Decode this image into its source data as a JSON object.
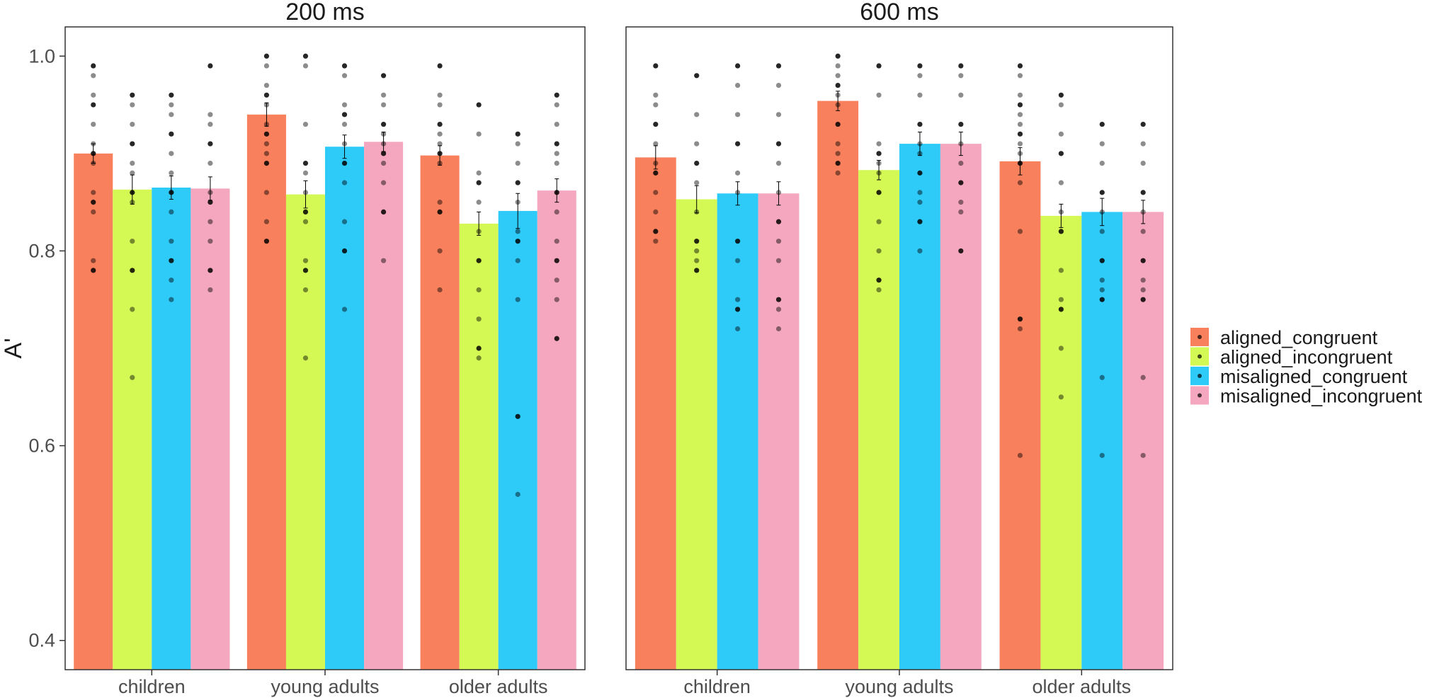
{
  "chart_data": {
    "type": "bar",
    "ylabel": "A'",
    "ylim": [
      0.37,
      1.03
    ],
    "yticks": [
      0.4,
      0.6,
      0.8,
      1.0
    ],
    "ytick_labels": [
      "0.4",
      "0.6",
      "0.8",
      "1.0"
    ],
    "categories": [
      "children",
      "young adults",
      "older adults"
    ],
    "legend_position": "right",
    "colors": {
      "aligned_congruent": "#F8805C",
      "aligned_incongruent": "#D4F955",
      "misaligned_congruent": "#2ECBF9",
      "misaligned_incongruent": "#F4A7BE",
      "points": "#000000",
      "panel_border": "#333333"
    },
    "legend": [
      {
        "key": "aligned_congruent",
        "label": "aligned_congruent"
      },
      {
        "key": "aligned_incongruent",
        "label": "aligned_incongruent"
      },
      {
        "key": "misaligned_congruent",
        "label": "misaligned_congruent"
      },
      {
        "key": "misaligned_incongruent",
        "label": "misaligned_incongruent"
      }
    ],
    "panels": [
      {
        "title": "200 ms",
        "series": [
          {
            "name": "aligned_congruent",
            "values": [
              0.9,
              0.94,
              0.898
            ],
            "se": [
              0.01,
              0.012,
              0.01
            ],
            "points": [
              [
                0.99,
                0.98,
                0.96,
                0.95,
                0.93,
                0.91,
                0.9,
                0.89,
                0.86,
                0.85,
                0.84,
                0.79,
                0.78
              ],
              [
                1.0,
                0.99,
                0.97,
                0.96,
                0.95,
                0.93,
                0.92,
                0.91,
                0.9,
                0.89,
                0.86,
                0.83,
                0.81
              ],
              [
                0.99,
                0.96,
                0.95,
                0.93,
                0.92,
                0.91,
                0.9,
                0.89,
                0.85,
                0.84,
                0.8,
                0.76
              ]
            ]
          },
          {
            "name": "aligned_incongruent",
            "values": [
              0.863,
              0.858,
              0.828
            ],
            "se": [
              0.015,
              0.014,
              0.012
            ],
            "points": [
              [
                0.96,
                0.95,
                0.93,
                0.91,
                0.89,
                0.88,
                0.86,
                0.85,
                0.81,
                0.78,
                0.74,
                0.67
              ],
              [
                1.0,
                0.99,
                0.93,
                0.89,
                0.88,
                0.86,
                0.84,
                0.83,
                0.79,
                0.78,
                0.76,
                0.69
              ],
              [
                0.95,
                0.92,
                0.88,
                0.87,
                0.85,
                0.82,
                0.79,
                0.76,
                0.73,
                0.7,
                0.69
              ]
            ]
          },
          {
            "name": "misaligned_congruent",
            "values": [
              0.865,
              0.907,
              0.841
            ],
            "se": [
              0.012,
              0.012,
              0.018
            ],
            "points": [
              [
                0.96,
                0.95,
                0.94,
                0.92,
                0.9,
                0.88,
                0.86,
                0.84,
                0.81,
                0.79,
                0.77,
                0.75
              ],
              [
                0.99,
                0.98,
                0.95,
                0.94,
                0.93,
                0.91,
                0.89,
                0.87,
                0.83,
                0.8,
                0.74
              ],
              [
                0.92,
                0.91,
                0.89,
                0.87,
                0.85,
                0.82,
                0.81,
                0.79,
                0.75,
                0.63,
                0.55
              ]
            ]
          },
          {
            "name": "misaligned_incongruent",
            "values": [
              0.864,
              0.912,
              0.862
            ],
            "se": [
              0.012,
              0.01,
              0.012
            ],
            "points": [
              [
                0.99,
                0.94,
                0.93,
                0.91,
                0.89,
                0.86,
                0.85,
                0.83,
                0.81,
                0.78,
                0.76
              ],
              [
                0.98,
                0.96,
                0.95,
                0.93,
                0.92,
                0.91,
                0.9,
                0.89,
                0.87,
                0.84,
                0.79
              ],
              [
                0.96,
                0.95,
                0.93,
                0.91,
                0.9,
                0.89,
                0.86,
                0.84,
                0.81,
                0.79,
                0.77,
                0.75,
                0.71
              ]
            ]
          }
        ]
      },
      {
        "title": "600 ms",
        "series": [
          {
            "name": "aligned_congruent",
            "values": [
              0.896,
              0.954,
              0.892
            ],
            "se": [
              0.012,
              0.01,
              0.014
            ],
            "points": [
              [
                0.99,
                0.96,
                0.95,
                0.93,
                0.91,
                0.89,
                0.88,
                0.86,
                0.84,
                0.82,
                0.81
              ],
              [
                1.0,
                0.99,
                0.98,
                0.97,
                0.96,
                0.95,
                0.93,
                0.91,
                0.9,
                0.89,
                0.88
              ],
              [
                0.99,
                0.98,
                0.96,
                0.95,
                0.94,
                0.93,
                0.92,
                0.91,
                0.9,
                0.89,
                0.87,
                0.82,
                0.73,
                0.72,
                0.59
              ]
            ]
          },
          {
            "name": "aligned_incongruent",
            "values": [
              0.853,
              0.883,
              0.836
            ],
            "se": [
              0.014,
              0.01,
              0.012
            ],
            "points": [
              [
                0.98,
                0.94,
                0.91,
                0.89,
                0.87,
                0.84,
                0.81,
                0.8,
                0.79,
                0.78
              ],
              [
                0.99,
                0.96,
                0.91,
                0.9,
                0.89,
                0.88,
                0.86,
                0.83,
                0.8,
                0.77,
                0.76
              ],
              [
                0.96,
                0.95,
                0.92,
                0.9,
                0.87,
                0.84,
                0.82,
                0.78,
                0.75,
                0.74,
                0.7,
                0.65
              ]
            ]
          },
          {
            "name": "misaligned_congruent",
            "values": [
              0.859,
              0.91,
              0.84
            ],
            "se": [
              0.012,
              0.012,
              0.014
            ],
            "points": [
              [
                0.99,
                0.97,
                0.94,
                0.91,
                0.88,
                0.86,
                0.81,
                0.79,
                0.75,
                0.74,
                0.72
              ],
              [
                0.99,
                0.98,
                0.96,
                0.93,
                0.91,
                0.9,
                0.88,
                0.86,
                0.85,
                0.83,
                0.8
              ],
              [
                0.93,
                0.91,
                0.89,
                0.86,
                0.84,
                0.82,
                0.79,
                0.77,
                0.76,
                0.75,
                0.67,
                0.59
              ]
            ]
          },
          {
            "name": "misaligned_incongruent",
            "values": [
              0.859,
              0.91,
              0.84
            ],
            "se": [
              0.012,
              0.012,
              0.012
            ],
            "points": [
              [
                0.99,
                0.97,
                0.94,
                0.91,
                0.89,
                0.86,
                0.83,
                0.81,
                0.79,
                0.75,
                0.74,
                0.72
              ],
              [
                0.99,
                0.98,
                0.96,
                0.93,
                0.91,
                0.89,
                0.87,
                0.85,
                0.84,
                0.8
              ],
              [
                0.93,
                0.91,
                0.89,
                0.86,
                0.84,
                0.82,
                0.79,
                0.77,
                0.76,
                0.75,
                0.67,
                0.59
              ]
            ]
          }
        ]
      }
    ]
  }
}
